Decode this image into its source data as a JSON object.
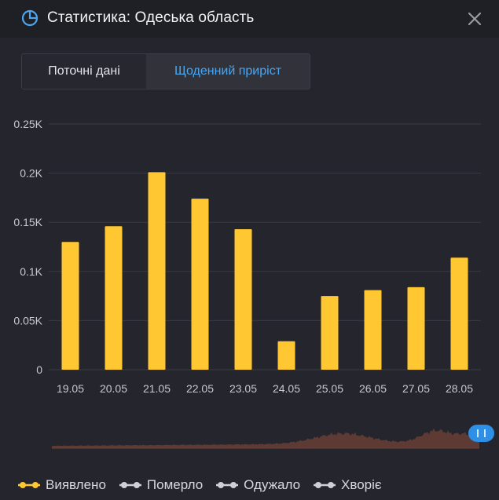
{
  "window": {
    "title": "Статистика: Одеська область",
    "title_icon": "pie-chart-icon",
    "close_icon": "close-icon"
  },
  "tabs": [
    {
      "label": "Поточні дані",
      "active": false
    },
    {
      "label": "Щоденний приріст",
      "active": true
    }
  ],
  "colors": {
    "accent": "#4aa6ee",
    "bar": "#ffc832",
    "navigator_fill": "#5d3a33",
    "handle": "#2e8fe6",
    "legend_inactive": "#d0d0d4"
  },
  "chart_data": {
    "type": "bar",
    "categories": [
      "19.05",
      "20.05",
      "21.05",
      "22.05",
      "23.05",
      "24.05",
      "25.05",
      "26.05",
      "27.05",
      "28.05"
    ],
    "series": [
      {
        "name": "Виявлено",
        "values": [
          130,
          146,
          201,
          174,
          143,
          29,
          75,
          81,
          84,
          114
        ]
      }
    ],
    "y_ticks": [
      {
        "value": 0,
        "label": "0"
      },
      {
        "value": 50,
        "label": "0.05K"
      },
      {
        "value": 100,
        "label": "0.1K"
      },
      {
        "value": 150,
        "label": "0.15K"
      },
      {
        "value": 200,
        "label": "0.2K"
      },
      {
        "value": 250,
        "label": "0.25K"
      }
    ],
    "ylim": [
      0,
      250
    ],
    "grid": true,
    "legend_placement": "bottom"
  },
  "legend": [
    {
      "label": "Виявлено",
      "color": "#ffc832",
      "active": true
    },
    {
      "label": "Померло",
      "color": "#d0d0d4",
      "active": false
    },
    {
      "label": "Одужало",
      "color": "#d0d0d4",
      "active": false
    },
    {
      "label": "Хворіє",
      "color": "#d0d0d4",
      "active": false
    }
  ]
}
